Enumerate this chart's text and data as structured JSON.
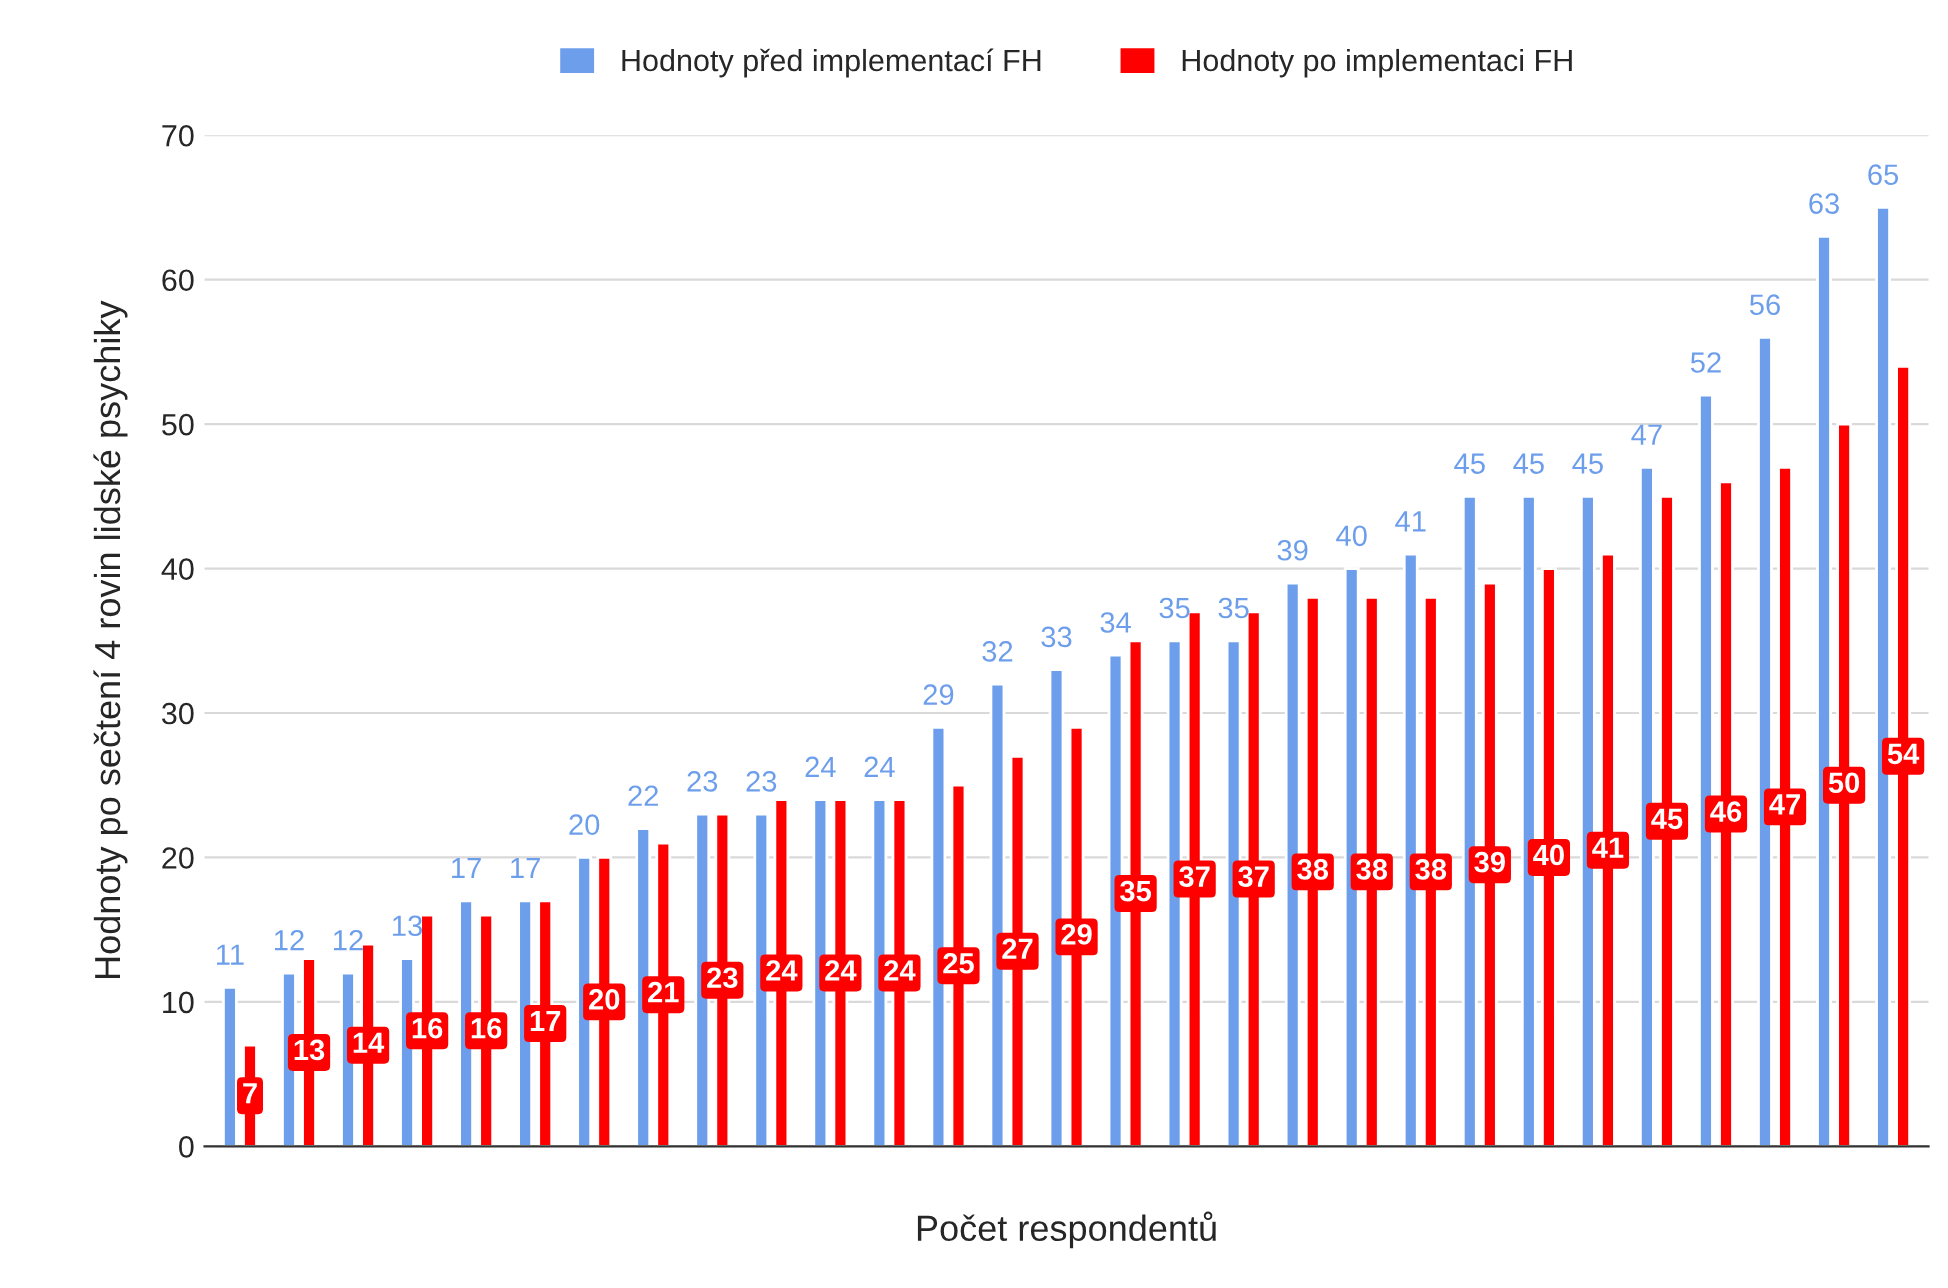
{
  "chart_data": {
    "type": "bar",
    "xlabel": "Počet respondentů",
    "ylabel": "Hodnoty po sečtení 4 rovin lidské psychiky",
    "categories": [
      null,
      null,
      null,
      null,
      null,
      null,
      null,
      null,
      null,
      null,
      null,
      null,
      null,
      null,
      null,
      null,
      null,
      null,
      null,
      null,
      null,
      null,
      null,
      null,
      null,
      null,
      null,
      null,
      null
    ],
    "series": [
      {
        "name": "Hodnoty před implementací FH",
        "color": "#6d9eeb",
        "values": [
          11,
          12,
          12,
          13,
          17,
          17,
          20,
          22,
          23,
          23,
          24,
          24,
          29,
          32,
          33,
          34,
          35,
          35,
          39,
          40,
          41,
          45,
          45,
          45,
          47,
          52,
          56,
          63,
          65
        ]
      },
      {
        "name": "Hodnoty po implementaci FH",
        "color": "#ff0000",
        "values": [
          7,
          13,
          14,
          16,
          16,
          17,
          20,
          21,
          23,
          24,
          24,
          24,
          25,
          27,
          29,
          35,
          37,
          37,
          38,
          38,
          38,
          39,
          40,
          41,
          45,
          46,
          47,
          50,
          54
        ]
      }
    ],
    "ylim": [
      0,
      70
    ],
    "yticks": [
      0,
      10,
      20,
      30,
      40,
      50,
      60,
      70
    ],
    "grid": "y",
    "legend": "top",
    "data_labels": true
  }
}
